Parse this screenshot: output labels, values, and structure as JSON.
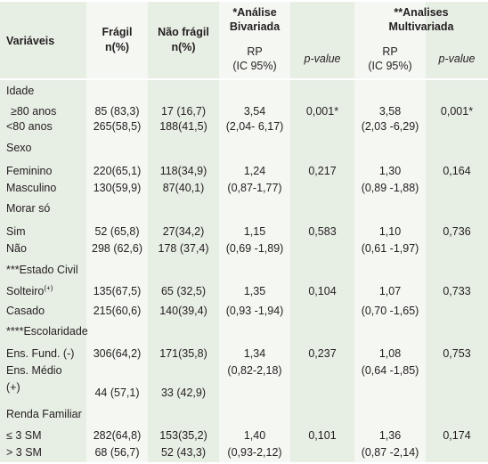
{
  "headers": {
    "variaveis": "Variáveis",
    "fragil_1": "Frágil",
    "fragil_2": "n(%)",
    "nao_fragil_1": "Não frágil",
    "nao_fragil_2": "n(%)",
    "bivariada_1": "*Análise",
    "bivariada_2": "Bivariada",
    "rp_biv_1": "RP",
    "rp_biv_2": "(IC 95%)",
    "pvalue_biv": "p-value",
    "multivariada_1": "**Analises",
    "multivariada_2": "Multivariada",
    "rp_multi_1": "RP",
    "rp_multi_2": "(IC 95%)",
    "pvalue_multi": "p-value"
  },
  "sections": {
    "idade": {
      "title": "Idade",
      "rows": [
        {
          "label": "≥80 anos",
          "fragil": "85 (83,3)",
          "nao_fragil": "17 (16,7)",
          "rp_biv": "3,54",
          "p_biv": "0,001*",
          "rp_multi": "3,58",
          "p_multi": "0,001*"
        },
        {
          "label": "<80 anos",
          "fragil": "265(58,5)",
          "nao_fragil": "188(41,5)",
          "ci_biv": "(2,04- 6,17)",
          "ci_multi": "(2,03 -6,29)"
        }
      ]
    },
    "sexo": {
      "title": "Sexo",
      "rows": [
        {
          "label": "Feminino",
          "fragil": "220(65,1)",
          "nao_fragil": "118(34,9)",
          "rp_biv": "1,24",
          "p_biv": "0,217",
          "rp_multi": "1,30",
          "p_multi": "0,164"
        },
        {
          "label": "Masculino",
          "fragil": "130(59,9)",
          "nao_fragil": "87(40,1)",
          "ci_biv": "(0,87-1,77)",
          "ci_multi": "(0,89 -1,88)"
        }
      ]
    },
    "morar_so": {
      "title": "Morar só",
      "rows": [
        {
          "label": "Sim",
          "fragil": "52 (65,8)",
          "nao_fragil": "27(34,2)",
          "rp_biv": "1,15",
          "p_biv": "0,583",
          "rp_multi": "1,10",
          "p_multi": "0,736"
        },
        {
          "label": "Não",
          "fragil": "298 (62,6)",
          "nao_fragil": "178 (37,4)",
          "ci_biv": "(0,69 -1,89)",
          "ci_multi": "(0,61 -1,97)"
        }
      ]
    },
    "estado_civil": {
      "title": "***Estado Civil",
      "rows": [
        {
          "label": "Solteiro",
          "label_sup": "(+)",
          "fragil": "135(67,5)",
          "nao_fragil": "65 (32,5)",
          "rp_biv": "1,35",
          "p_biv": "0,104",
          "rp_multi": "1,07",
          "p_multi": "0,733"
        },
        {
          "label": "Casado",
          "fragil": "215(60,6)",
          "nao_fragil": "140(39,4)",
          "ci_biv": "(0,93 -1,94)",
          "ci_multi": "(0,70 -1,65)"
        }
      ]
    },
    "escolaridade": {
      "title": "****Escolaridade",
      "rows": [
        {
          "label": "Ens. Fund. (-)",
          "fragil": "306(64,2)",
          "nao_fragil": "171(35,8)",
          "rp_biv": "1,34",
          "p_biv": "0,237",
          "rp_multi": "1,08",
          "p_multi": "0,753"
        },
        {
          "label_1": "Ens. Médio",
          "label_2": "(+)",
          "fragil": "44 (57,1)",
          "nao_fragil": "33 (42,9)",
          "ci_biv": "(0,82-2,18)",
          "ci_multi": "(0,64 -1,85)"
        }
      ]
    },
    "renda": {
      "title": "Renda Familiar",
      "rows": [
        {
          "label": "≤ 3 SM",
          "fragil": "282(64,8)",
          "nao_fragil": "153(35,2)",
          "rp_biv": "1,40",
          "p_biv": "0,101",
          "rp_multi": "1,36",
          "p_multi": "0,174"
        },
        {
          "label": "> 3 SM",
          "fragil": "68 (56,7)",
          "nao_fragil": "52 (43,3)",
          "ci_biv": "(0,93-2,12)",
          "ci_multi": "(0,87 -2,14)"
        }
      ]
    }
  },
  "colors": {
    "background": "#e7eee4",
    "band": "#f4f7f2",
    "rule": "#ffffff",
    "text": "#231f20"
  }
}
